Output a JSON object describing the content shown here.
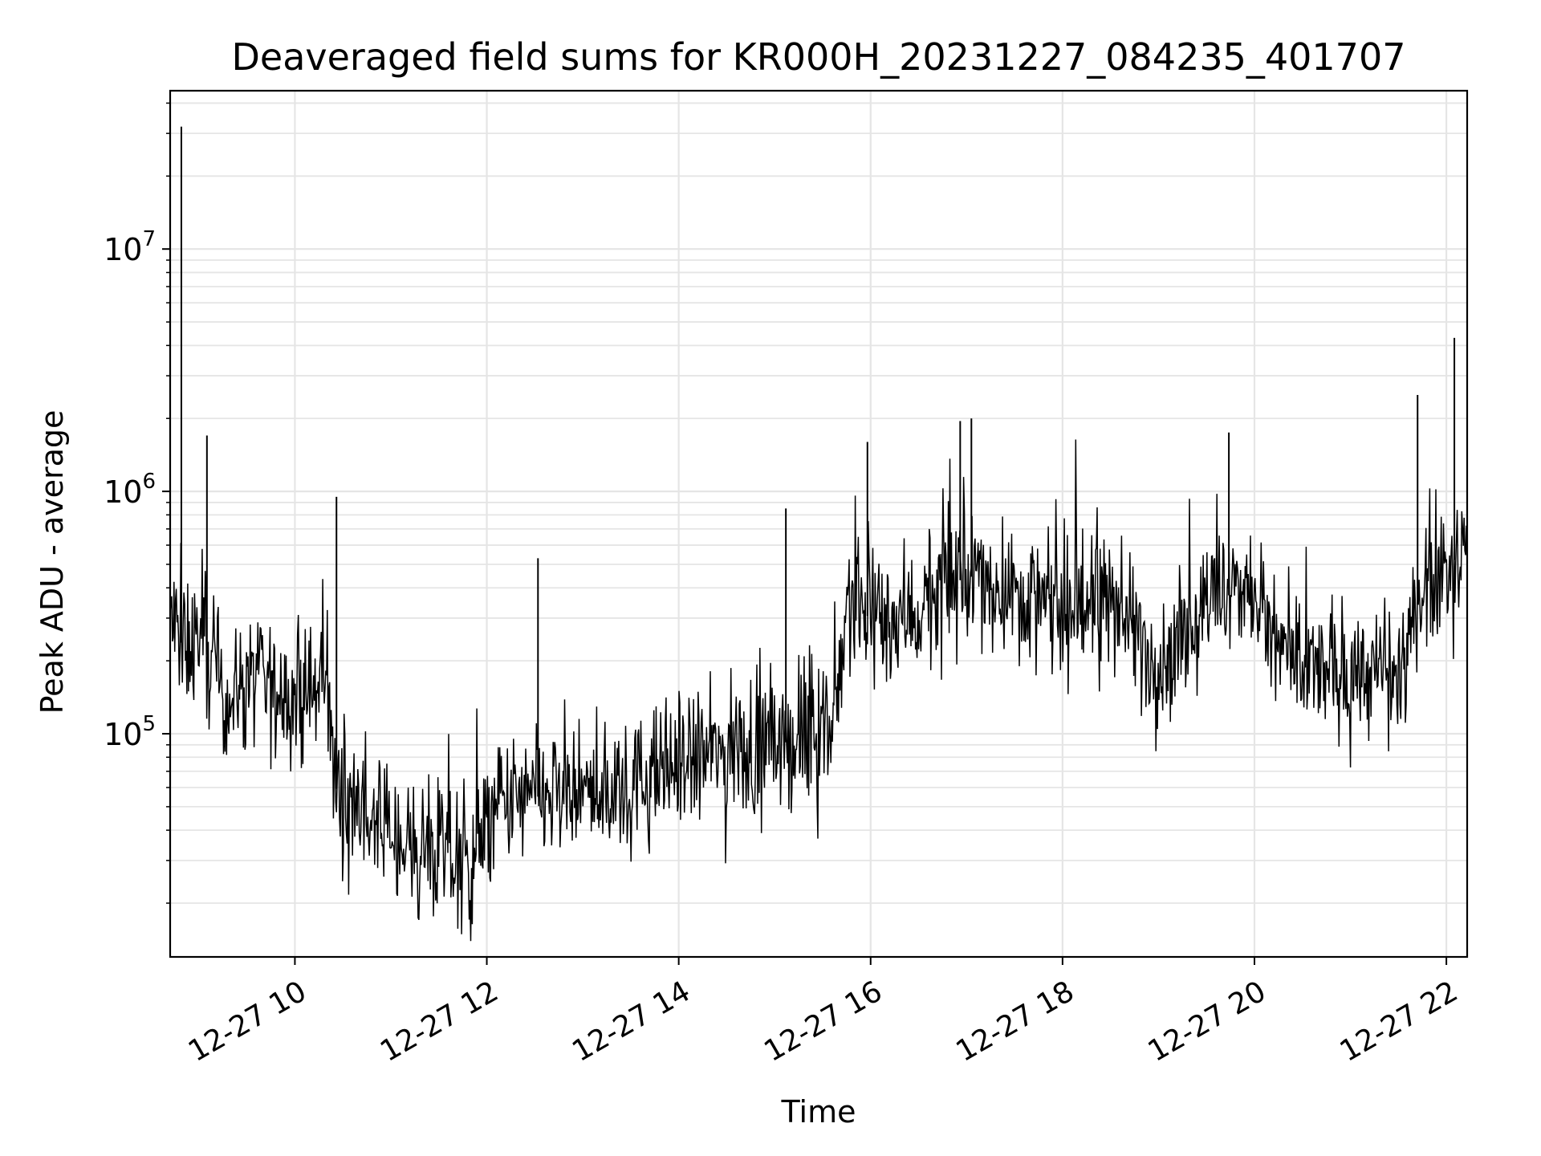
{
  "chart_data": {
    "type": "line",
    "title": "Deaveraged field sums for KR000H_20231227_084235_401707",
    "xlabel": "Time",
    "ylabel": "Peak ADU - average",
    "yscale": "log",
    "grid": true,
    "line_color": "#000000",
    "grid_color": "#e5e5e5",
    "xlim": [
      "2023-12-27 08:42",
      "2023-12-27 22:13"
    ],
    "ylim": [
      12000,
      45000000
    ],
    "x_ticks": [
      "12-27 10",
      "12-27 12",
      "12-27 14",
      "12-27 16",
      "12-27 18",
      "12-27 20",
      "12-27 22"
    ],
    "x_tick_values": [
      "2023-12-27 10:00",
      "2023-12-27 12:00",
      "2023-12-27 14:00",
      "2023-12-27 16:00",
      "2023-12-27 18:00",
      "2023-12-27 20:00",
      "2023-12-27 22:00"
    ],
    "y_ticks": [
      {
        "base": "10",
        "exp": "5",
        "value": 100000
      },
      {
        "base": "10",
        "exp": "6",
        "value": 1000000
      },
      {
        "base": "10",
        "exp": "7",
        "value": 10000000
      }
    ],
    "series": [
      {
        "x": [
          "2023-12-27 08:42",
          "2023-12-27 08:50",
          "2023-12-27 09:00",
          "2023-12-27 09:10",
          "2023-12-27 09:20",
          "2023-12-27 09:30",
          "2023-12-27 09:40",
          "2023-12-27 09:50",
          "2023-12-27 10:00",
          "2023-12-27 10:10",
          "2023-12-27 10:20",
          "2023-12-27 10:25",
          "2023-12-27 10:40",
          "2023-12-27 11:00",
          "2023-12-27 11:20",
          "2023-12-27 11:40",
          "2023-12-27 11:50",
          "2023-12-27 12:00",
          "2023-12-27 12:10",
          "2023-12-27 12:30",
          "2023-12-27 13:00",
          "2023-12-27 13:30",
          "2023-12-27 14:00",
          "2023-12-27 14:30",
          "2023-12-27 15:00",
          "2023-12-27 15:30",
          "2023-12-27 15:38",
          "2023-12-27 15:45",
          "2023-12-27 16:00",
          "2023-12-27 16:30",
          "2023-12-27 17:00",
          "2023-12-27 17:30",
          "2023-12-27 18:00",
          "2023-12-27 18:30",
          "2023-12-27 19:00",
          "2023-12-27 19:30",
          "2023-12-27 20:00",
          "2023-12-27 20:10",
          "2023-12-27 20:30",
          "2023-12-27 21:00",
          "2023-12-27 21:30",
          "2023-12-27 21:35",
          "2023-12-27 21:45",
          "2023-12-27 22:00",
          "2023-12-27 22:13"
        ],
        "y": [
          300000,
          230000,
          250000,
          180000,
          140000,
          170000,
          160000,
          150000,
          140000,
          140000,
          180000,
          60000,
          50000,
          38000,
          33000,
          30000,
          28000,
          40000,
          50000,
          55000,
          55000,
          60000,
          75000,
          85000,
          90000,
          100000,
          120000,
          350000,
          300000,
          320000,
          450000,
          400000,
          300000,
          380000,
          190000,
          350000,
          400000,
          250000,
          180000,
          180000,
          170000,
          180000,
          450000,
          500000,
          560000
        ],
        "spikes": [
          {
            "x": "2023-12-27 08:49",
            "y": 32000000
          },
          {
            "x": "2023-12-27 09:05",
            "y": 1700000
          },
          {
            "x": "2023-12-27 10:26",
            "y": 950000
          },
          {
            "x": "2023-12-27 12:32",
            "y": 530000
          },
          {
            "x": "2023-12-27 15:07",
            "y": 850000
          },
          {
            "x": "2023-12-27 15:58",
            "y": 1600000
          },
          {
            "x": "2023-12-27 16:56",
            "y": 1950000
          },
          {
            "x": "2023-12-27 17:03",
            "y": 2000000
          },
          {
            "x": "2023-12-27 19:44",
            "y": 1750000
          },
          {
            "x": "2023-12-27 21:42",
            "y": 2500000
          },
          {
            "x": "2023-12-27 22:05",
            "y": 4300000
          }
        ]
      }
    ]
  }
}
